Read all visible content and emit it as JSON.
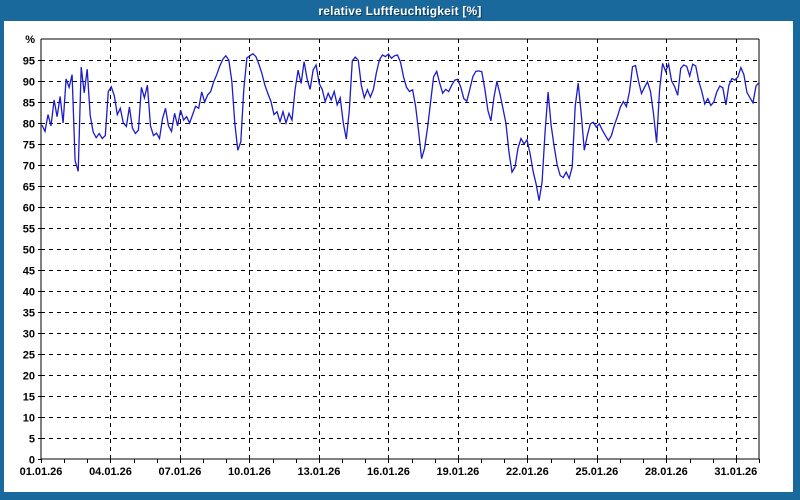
{
  "window": {
    "title": "relative Luftfeuchtigkeit [%]",
    "titlebar_color": "#1a699c",
    "border_color": "#1a699c"
  },
  "chart_data": {
    "type": "line",
    "title": "relative Luftfeuchtigkeit [%]",
    "xlabel": "",
    "ylabel": "%",
    "ylim": [
      0,
      100
    ],
    "ytick_step": 5,
    "ytick_labels": [
      "0",
      "5",
      "10",
      "15",
      "20",
      "25",
      "30",
      "35",
      "40",
      "45",
      "50",
      "55",
      "60",
      "65",
      "70",
      "75",
      "80",
      "85",
      "90",
      "95"
    ],
    "x_range_days": [
      0,
      31
    ],
    "xtick_labels": [
      "01.01.26",
      "04.01.26",
      "07.01.26",
      "10.01.26",
      "13.01.26",
      "16.01.26",
      "19.01.26",
      "22.01.26",
      "25.01.26",
      "28.01.26",
      "31.01.26"
    ],
    "xtick_label_step_days": 3,
    "x_minor_tick_every_days": 1,
    "grid": "dashed",
    "legend": "none",
    "plot_bg": "#ffffff",
    "grid_color": "#000000",
    "axis_color": "#000000",
    "label_color": "#000000",
    "line_color": "#1c1cc8",
    "series": [
      {
        "name": "relative Luftfeuchtigkeit",
        "unit": "%",
        "note": "values evenly spaced in time from 01.01.26 to 01.02.26",
        "values": [
          79.5,
          78,
          82,
          79.3,
          85.5,
          81.5,
          86.3,
          80,
          90.5,
          88.5,
          91.5,
          71,
          68.5,
          93.3,
          87.2,
          92.8,
          81.8,
          77.8,
          76.5,
          77.5,
          76.3,
          77,
          87.5,
          88.6,
          86.5,
          82,
          83.5,
          80,
          79.2,
          83.8,
          78.8,
          77.5,
          78.3,
          88.5,
          86,
          89,
          79.3,
          77,
          77.6,
          76.3,
          81,
          83.5,
          79.3,
          78,
          82.3,
          79.3,
          83.1,
          80.7,
          81.5,
          80,
          82,
          84,
          83.5,
          87.4,
          85,
          86.7,
          87.5,
          89.8,
          91.5,
          93.5,
          95.2,
          96,
          95,
          90,
          80,
          73.5,
          75.5,
          88,
          95.5,
          96,
          96.5,
          95.8,
          94,
          91.8,
          89,
          87,
          85.1,
          82,
          82.7,
          80.3,
          82.7,
          80,
          82.3,
          80.7,
          88,
          92.6,
          89.4,
          94.6,
          90.5,
          88,
          92.6,
          93.8,
          89.4,
          88,
          85.1,
          87.1,
          85.5,
          87.5,
          84.3,
          86,
          80,
          76.2,
          83,
          94.8,
          95.7,
          94.9,
          89,
          86,
          87.9,
          86.2,
          88,
          92,
          95,
          96.2,
          95.8,
          96.4,
          95.4,
          96,
          96.2,
          94.5,
          91,
          88.5,
          87.5,
          87.9,
          84,
          78,
          71.5,
          74,
          79,
          85,
          91,
          92.3,
          89.5,
          87.1,
          88,
          87.5,
          89,
          90.2,
          90.4,
          88.5,
          85.8,
          85.2,
          88,
          91,
          92.3,
          92.4,
          92.2,
          88,
          83,
          80.5,
          86,
          89.9,
          87,
          83.5,
          80,
          73,
          68.3,
          69.5,
          74,
          76.3,
          75,
          76,
          72.8,
          68.5,
          65.5,
          61.5,
          66,
          78,
          87.4,
          79.5,
          74.5,
          70,
          67.5,
          67,
          68.3,
          66.8,
          69.5,
          84,
          89.5,
          82,
          73.5,
          77,
          79.8,
          80.2,
          79,
          79.8,
          78.3,
          77,
          75.8,
          77,
          79.5,
          81.5,
          83.8,
          85.1,
          83.9,
          87.5,
          93.4,
          93.7,
          90,
          87,
          88.5,
          89.8,
          87.5,
          82,
          75.3,
          88,
          94.2,
          92.3,
          94,
          90,
          88.7,
          86.6,
          93,
          93.8,
          93.5,
          91.2,
          94,
          93.6,
          90,
          87.5,
          84.5,
          85.8,
          84.2,
          85,
          87.4,
          88.8,
          88.4,
          84.3,
          89,
          90.6,
          90.2,
          91,
          93.2,
          91.5,
          87.3,
          86,
          84.8,
          88.8,
          89.6
        ]
      }
    ]
  }
}
